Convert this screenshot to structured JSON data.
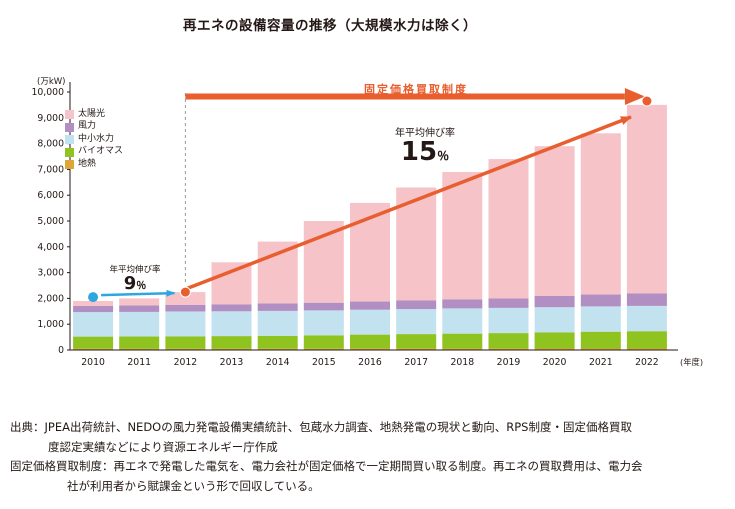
{
  "page": {
    "title": "再エネの設備容量の推移（大規模水力は除く）"
  },
  "chart": {
    "unit_label": "(万kW)",
    "year_axis_suffix": "(年度)"
  },
  "annotations": {
    "fit_label": "固定価格買取制度",
    "growth_after": {
      "label": "年平均伸び率",
      "value": "15",
      "unit": "％"
    },
    "growth_before": {
      "label": "年平均伸び率",
      "value": "9",
      "unit": "％"
    }
  },
  "footnotes": [
    "出典：JPEA出荷統計、NEDOの風力発電設備実績統計、包蔵水力調査、地熱発電の現状と動向、RPS制度・固定価格買取",
    "度認定実績などにより資源エネルギー庁作成",
    "固定価格買取制度：再エネで発電した電気を、電力会社が固定価格で一定期間買い取る制度。再エネの買取費用は、電力会",
    "社が利用者から賦課金という形で回収している。"
  ],
  "chart_data": {
    "type": "bar",
    "stacked": true,
    "title": "再エネの設備容量の推移（大規模水力は除く）",
    "xlabel": "年度",
    "ylabel": "万kW",
    "ylim": [
      0,
      10000
    ],
    "ytick_step": 1000,
    "grid": false,
    "legend_position": "upper-left-inside",
    "categories": [
      2010,
      2011,
      2012,
      2013,
      2014,
      2015,
      2016,
      2017,
      2018,
      2019,
      2020,
      2021,
      2022
    ],
    "series": [
      {
        "name": "太陽光",
        "color": "#F5C3C8",
        "values": [
          190,
          270,
          495,
          1630,
          2395,
          3165,
          3815,
          4375,
          4940,
          5400,
          5800,
          6250,
          7310
        ]
      },
      {
        "name": "風力",
        "color": "#B18FC2",
        "values": [
          240,
          250,
          260,
          270,
          290,
          300,
          320,
          340,
          350,
          370,
          440,
          460,
          480
        ]
      },
      {
        "name": "中小水力",
        "color": "#C2E2F0",
        "values": [
          950,
          955,
          960,
          960,
          965,
          965,
          970,
          970,
          975,
          975,
          980,
          980,
          980
        ]
      },
      {
        "name": "バイオマス",
        "color": "#8FC31F",
        "values": [
          470,
          475,
          480,
          490,
          500,
          520,
          540,
          560,
          580,
          600,
          620,
          650,
          670
        ]
      },
      {
        "name": "地熱",
        "color": "#DFA53A",
        "values": [
          50,
          50,
          50,
          50,
          50,
          50,
          55,
          55,
          55,
          55,
          60,
          60,
          60
        ]
      }
    ],
    "totals": [
      1900,
      2000,
      2245,
      3400,
      4200,
      5000,
      5700,
      6300,
      6900,
      7400,
      7900,
      8400,
      9500
    ],
    "annotations": {
      "fit_period": {
        "label": "固定価格買取制度",
        "from_year": 2012,
        "to_year": 2022
      },
      "avg_growth_after_fit": {
        "label": "年平均伸び率",
        "value_percent": 15,
        "from_year": 2012,
        "to_year": 2022
      },
      "avg_growth_before_fit": {
        "label": "年平均伸び率",
        "value_percent": 9,
        "from_year": 2010,
        "to_year": 2012
      }
    },
    "colors": {
      "accent_orange": "#E95E2F",
      "accent_blue": "#2EA7E0",
      "axis": "#231815",
      "dashed_guide": "#999999"
    }
  }
}
